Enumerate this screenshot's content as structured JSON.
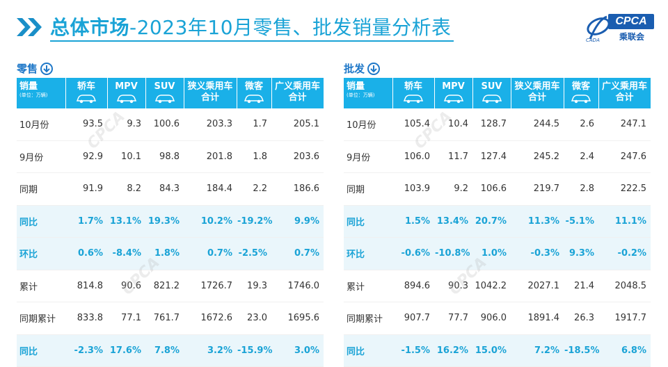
{
  "header": {
    "title_bold": "总体市场",
    "title_rest": "-2023年10月零售、批发销量分析表",
    "logo_text": "CPCA",
    "logo_cn": "乘联会",
    "logo_small": "CADA"
  },
  "columns": {
    "first": "销量",
    "first_sub": "(单位：万辆)",
    "c1": "轿车",
    "c2": "MPV",
    "c3": "SUV",
    "c4a": "狭义乘用车",
    "c4b": "合计",
    "c5": "微客",
    "c6a": "广义乘用车",
    "c6b": "合计"
  },
  "retail": {
    "label": "零售",
    "rows": [
      {
        "name": "10月份",
        "v": [
          "93.5",
          "9.3",
          "100.6",
          "203.3",
          "1.7",
          "205.1"
        ],
        "hl": false
      },
      {
        "name": "9月份",
        "v": [
          "92.9",
          "10.1",
          "98.8",
          "201.8",
          "1.8",
          "203.6"
        ],
        "hl": false
      },
      {
        "name": "同期",
        "v": [
          "91.9",
          "8.2",
          "84.3",
          "184.4",
          "2.2",
          "186.6"
        ],
        "hl": false
      },
      {
        "name": "同比",
        "v": [
          "1.7%",
          "13.1%",
          "19.3%",
          "10.2%",
          "-19.2%",
          "9.9%"
        ],
        "hl": true
      },
      {
        "name": "环比",
        "v": [
          "0.6%",
          "-8.4%",
          "1.8%",
          "0.7%",
          "-2.5%",
          "0.7%"
        ],
        "hl": true
      },
      {
        "name": "累计",
        "v": [
          "814.8",
          "90.6",
          "821.2",
          "1726.7",
          "19.3",
          "1746.0"
        ],
        "hl": false
      },
      {
        "name": "同期累计",
        "v": [
          "833.8",
          "77.1",
          "761.7",
          "1672.6",
          "23.0",
          "1695.6"
        ],
        "hl": false
      },
      {
        "name": "同比",
        "v": [
          "-2.3%",
          "17.6%",
          "7.8%",
          "3.2%",
          "-15.9%",
          "3.0%"
        ],
        "hl": true
      }
    ]
  },
  "wholesale": {
    "label": "批发",
    "rows": [
      {
        "name": "10月份",
        "v": [
          "105.4",
          "10.4",
          "128.7",
          "244.5",
          "2.6",
          "247.1"
        ],
        "hl": false
      },
      {
        "name": "9月份",
        "v": [
          "106.0",
          "11.7",
          "127.4",
          "245.2",
          "2.4",
          "247.6"
        ],
        "hl": false
      },
      {
        "name": "同期",
        "v": [
          "103.9",
          "9.2",
          "106.6",
          "219.7",
          "2.8",
          "222.5"
        ],
        "hl": false
      },
      {
        "name": "同比",
        "v": [
          "1.5%",
          "13.4%",
          "20.7%",
          "11.3%",
          "-5.1%",
          "11.1%"
        ],
        "hl": true
      },
      {
        "name": "环比",
        "v": [
          "-0.6%",
          "-10.8%",
          "1.0%",
          "-0.3%",
          "9.3%",
          "-0.2%"
        ],
        "hl": true
      },
      {
        "name": "累计",
        "v": [
          "894.6",
          "90.3",
          "1042.2",
          "2027.1",
          "21.4",
          "2048.5"
        ],
        "hl": false
      },
      {
        "name": "同期累计",
        "v": [
          "907.7",
          "77.7",
          "906.0",
          "1891.4",
          "26.3",
          "1917.7"
        ],
        "hl": false
      },
      {
        "name": "同比",
        "v": [
          "-1.5%",
          "16.2%",
          "15.0%",
          "7.2%",
          "-18.5%",
          "6.8%"
        ],
        "hl": true
      }
    ]
  },
  "colors": {
    "accent": "#1aa3d6",
    "header_bg": "#1ab0e8",
    "highlight_row_bg": "#eaf6fb",
    "logo_blue": "#1a5db0"
  }
}
